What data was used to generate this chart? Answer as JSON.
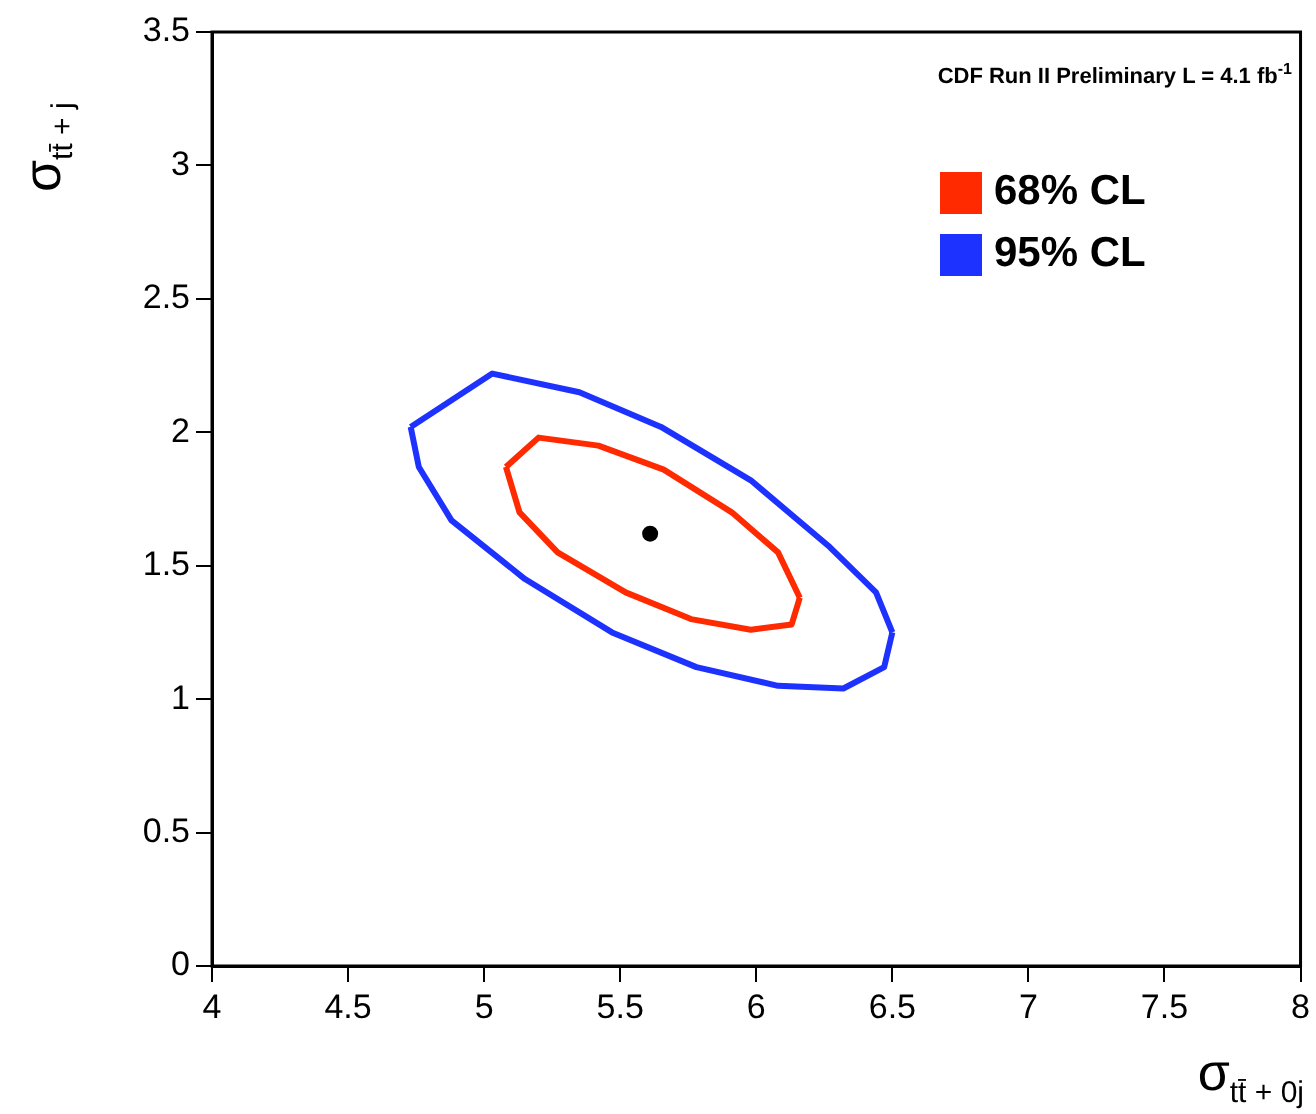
{
  "chart_data": {
    "type": "scatter",
    "xlabel": "σ$_{tt̄ + 0j}$",
    "ylabel": "σ$_{tt̄ + j}$",
    "annotations": [
      "CDF Run II Preliminary L = 4.1 fb$^{-1}$"
    ],
    "xlim": [
      4,
      8
    ],
    "ylim": [
      0,
      3.5
    ],
    "xticks": [
      4,
      4.5,
      5,
      5.5,
      6,
      6.5,
      7,
      7.5,
      8
    ],
    "yticks": [
      0,
      0.5,
      1,
      1.5,
      2,
      2.5,
      3,
      3.5
    ],
    "legend": "top right",
    "series": [
      {
        "name": "68% CL",
        "type": "line",
        "marker": "none",
        "color": "#ff2a00",
        "x": [
          5.08,
          5.2,
          5.42,
          5.66,
          5.91,
          6.08,
          6.16
        ],
        "values": [
          1.87,
          1.98,
          1.95,
          1.86,
          1.7,
          1.55,
          1.38
        ]
      },
      {
        "type": "line",
        "marker": "none",
        "color": "#ff2a00",
        "x": [
          5.08,
          5.13,
          5.27,
          5.52,
          5.76,
          5.98,
          6.13,
          6.16
        ],
        "values": [
          1.87,
          1.7,
          1.55,
          1.4,
          1.3,
          1.26,
          1.28,
          1.38
        ]
      },
      {
        "name": "95% CL",
        "type": "line",
        "marker": "none",
        "color": "#1e32ff",
        "x": [
          4.73,
          5.03,
          5.35,
          5.65,
          5.98,
          6.27,
          6.44,
          6.5
        ],
        "values": [
          2.02,
          2.22,
          2.15,
          2.02,
          1.82,
          1.57,
          1.4,
          1.25
        ]
      },
      {
        "type": "line",
        "marker": "none",
        "color": "#1e32ff",
        "x": [
          4.73,
          4.76,
          4.88,
          5.15,
          5.47,
          5.78,
          6.08,
          6.32,
          6.47,
          6.5
        ],
        "values": [
          2.02,
          1.87,
          1.67,
          1.45,
          1.25,
          1.12,
          1.05,
          1.04,
          1.12,
          1.25
        ]
      },
      {
        "type": "scatter",
        "marker": "circle",
        "color": "#000000",
        "x": [
          5.61
        ],
        "values": [
          1.62
        ]
      }
    ]
  }
}
